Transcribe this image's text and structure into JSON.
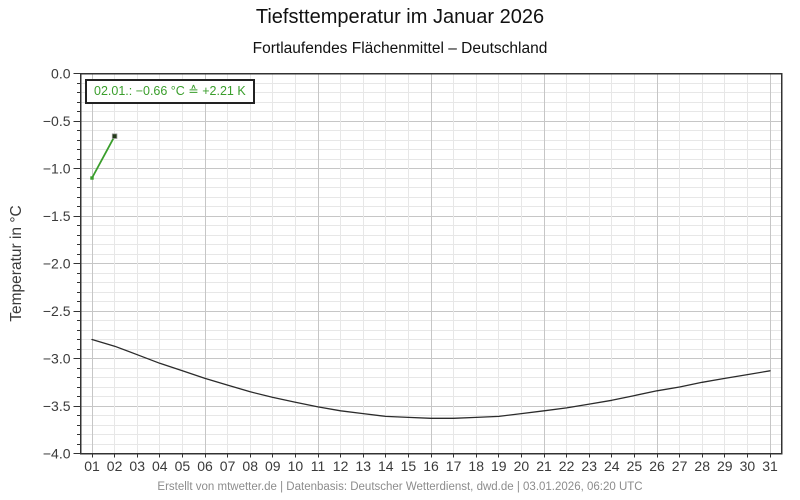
{
  "footer": {
    "credit": "Erstellt von mtwetter.de | Datenbasis: Deutscher Wetterdienst, dwd.de | 03.01.2026, 06:20 UTC"
  },
  "chart_data": {
    "type": "line",
    "title": "Tiefsttemperatur im Januar 2026",
    "subtitle": "Fortlaufendes Flächenmittel – Deutschland",
    "xlabel": "",
    "ylabel": "Temperatur in °C",
    "ylim": [
      -4.0,
      0.0
    ],
    "y_major_step": 0.5,
    "y_minor_step": 0.1,
    "x_major_every": 5,
    "grid": true,
    "legend": "none",
    "x": [
      1,
      2,
      3,
      4,
      5,
      6,
      7,
      8,
      9,
      10,
      11,
      12,
      13,
      14,
      15,
      16,
      17,
      18,
      19,
      20,
      21,
      22,
      23,
      24,
      25,
      26,
      27,
      28,
      29,
      30,
      31
    ],
    "x_tick_labels": [
      "01",
      "02",
      "03",
      "04",
      "05",
      "06",
      "07",
      "08",
      "09",
      "10",
      "11",
      "12",
      "13",
      "14",
      "15",
      "16",
      "17",
      "18",
      "19",
      "20",
      "21",
      "22",
      "23",
      "24",
      "25",
      "26",
      "27",
      "28",
      "29",
      "30",
      "31"
    ],
    "y_tick_labels": [
      "0.0",
      "−0.5",
      "−1.0",
      "−1.5",
      "−2.0",
      "−2.5",
      "−3.0",
      "−3.5",
      "−4.0"
    ],
    "series": [
      {
        "id": "reference-mean-curve",
        "color": "#2b2b2b",
        "width": 1.3,
        "x": [
          1,
          2,
          3,
          4,
          5,
          6,
          7,
          8,
          9,
          10,
          11,
          12,
          13,
          14,
          15,
          16,
          17,
          18,
          19,
          20,
          21,
          22,
          23,
          24,
          25,
          26,
          27,
          28,
          29,
          30,
          31
        ],
        "values": [
          -2.8,
          -2.87,
          -2.96,
          -3.05,
          -3.13,
          -3.21,
          -3.28,
          -3.35,
          -3.41,
          -3.46,
          -3.51,
          -3.55,
          -3.58,
          -3.61,
          -3.62,
          -3.63,
          -3.63,
          -3.62,
          -3.61,
          -3.58,
          -3.55,
          -3.52,
          -3.48,
          -3.44,
          -3.39,
          -3.34,
          -3.3,
          -3.25,
          -3.21,
          -3.17,
          -3.13
        ]
      },
      {
        "id": "observed-temperature",
        "color": "#3a9e2c",
        "width": 1.8,
        "x": [
          1,
          2
        ],
        "values": [
          -1.1,
          -0.66
        ],
        "markers": [
          {
            "x": 1,
            "shape": "square",
            "size": 3.4,
            "color": "#3a9e2c"
          },
          {
            "x": 2,
            "shape": "square",
            "size": 4.6,
            "color": "#233a18",
            "stroke": "#9a9a9a"
          }
        ]
      }
    ],
    "annotation": {
      "text": "02.01.: −0.66 °C ≙ +2.21 K",
      "color": "#3a9e2c",
      "border": "#222222",
      "background": "#ffffff"
    },
    "colors": {
      "grid_minor": "#e7e7e7",
      "grid_major": "#c6c6c6",
      "frame": "#333333",
      "tick_label": "#3a3a3a",
      "footer_text": "#8c8c8c",
      "accent_green": "#3a9e2c"
    }
  }
}
